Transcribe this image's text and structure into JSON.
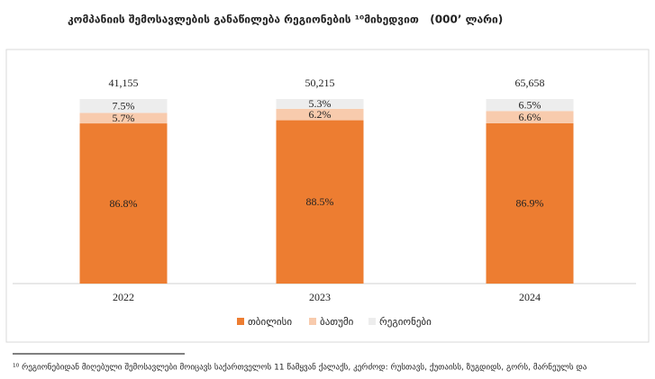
{
  "chart_data": {
    "type": "stacked_bar_100",
    "title": "კომპანიის შემოსავლების განაწილება რეგიონების ¹⁰მიხედვით   (000’ ლარი)",
    "categories": [
      "2022",
      "2023",
      "2024"
    ],
    "ylim": [
      0,
      100
    ],
    "series": [
      {
        "name": "თბილისი",
        "color": "#ed7d31",
        "values": [
          86.8,
          88.5,
          86.9
        ],
        "value_labels": [
          "86.8%",
          "88.5%",
          "86.9%"
        ]
      },
      {
        "name": "ბათუმი",
        "color": "#f8cbad",
        "values": [
          5.7,
          6.2,
          6.6
        ],
        "value_labels": [
          "5.7%",
          "6.2%",
          "6.6%"
        ]
      },
      {
        "name": "რეგიონები",
        "color": "#ededed",
        "values": [
          7.5,
          5.3,
          6.5
        ],
        "value_labels": [
          "7.5%",
          "5.3%",
          "6.5%"
        ]
      }
    ],
    "totals": {
      "values": [
        41155,
        50215,
        65658
      ],
      "value_labels": [
        "41,155",
        "50,215",
        "65,658"
      ]
    },
    "footnote": "¹⁰ რეგიონებიდან მიღებული შემოსავლები მოიცავს საქართველოს 11 წამყვან ქალაქს, კერძოდ: რუსთავს, ქუთაისს, ზუგდიდს, გორს, მარნეულს და"
  }
}
